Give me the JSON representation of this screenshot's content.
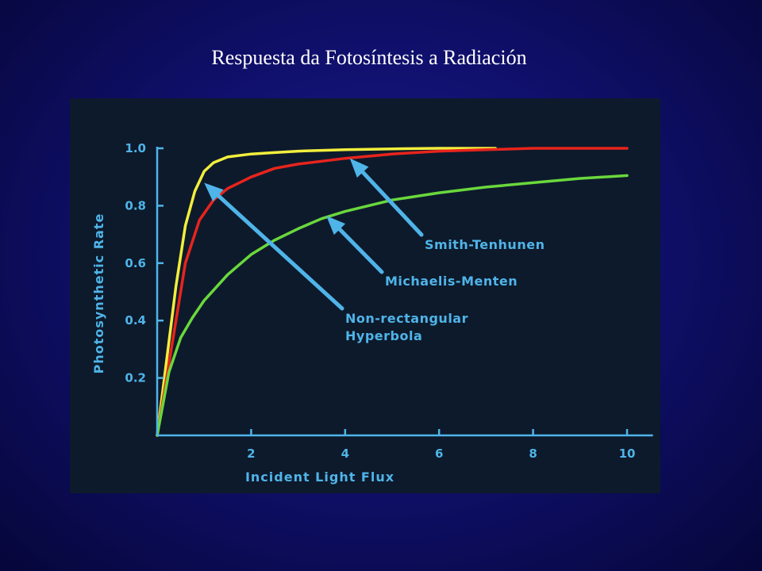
{
  "slide": {
    "title": "Respuesta  da Fotosíntesis a Radiación"
  },
  "colors": {
    "axis": "#4fb4e8",
    "arrow": "#4fb4e8",
    "panel": "#0d1a2c"
  },
  "chart_data": {
    "type": "line",
    "title": "",
    "xlabel": "Incident  Light  Flux",
    "ylabel": "Photosynthetic  Rate",
    "xlim": [
      0,
      10.5
    ],
    "ylim": [
      0,
      1.0
    ],
    "xticks": [
      2,
      4,
      6,
      8,
      10
    ],
    "yticks": [
      0.2,
      0.4,
      0.6,
      0.8,
      1.0
    ],
    "xtick_labels": [
      "2",
      "4",
      "6",
      "8",
      "10"
    ],
    "ytick_labels": [
      "0.2",
      "0.4",
      "0.6",
      "0.8",
      "1.0"
    ],
    "grid": false,
    "series": [
      {
        "color": "#f2ee3c",
        "x": [
          0,
          0.2,
          0.4,
          0.6,
          0.8,
          1.0,
          1.2,
          1.5,
          2.0,
          2.5,
          3.0,
          4.0,
          5.0,
          6.0,
          7.2
        ],
        "y": [
          0,
          0.26,
          0.52,
          0.73,
          0.85,
          0.92,
          0.95,
          0.97,
          0.98,
          0.985,
          0.99,
          0.995,
          0.998,
          1.0,
          1.0
        ]
      },
      {
        "color": "#e8241c",
        "x": [
          0,
          0.3,
          0.6,
          0.9,
          1.2,
          1.5,
          2.0,
          2.5,
          3.0,
          3.5,
          4.0,
          5.0,
          6.0,
          7.0,
          8.0,
          10.0
        ],
        "y": [
          0,
          0.3,
          0.6,
          0.75,
          0.82,
          0.86,
          0.9,
          0.93,
          0.945,
          0.955,
          0.965,
          0.98,
          0.99,
          0.995,
          1.0,
          1.0
        ]
      },
      {
        "color": "#6ad83c",
        "x": [
          0,
          0.25,
          0.5,
          0.75,
          1.0,
          1.5,
          2.0,
          2.5,
          3.0,
          3.5,
          4.0,
          5.0,
          6.0,
          7.0,
          8.0,
          9.0,
          10.0
        ],
        "y": [
          0,
          0.22,
          0.34,
          0.41,
          0.47,
          0.56,
          0.63,
          0.68,
          0.72,
          0.755,
          0.78,
          0.82,
          0.845,
          0.865,
          0.88,
          0.895,
          0.905
        ]
      }
    ],
    "annotations": [
      {
        "lines": [
          "Smith-Tenhunen"
        ],
        "target": [
          4.1,
          0.965
        ],
        "anchor": "left"
      },
      {
        "lines": [
          "Michaelis-Menten"
        ],
        "target": [
          3.6,
          0.765
        ],
        "anchor": "left"
      },
      {
        "lines": [
          "Non-rectangular",
          "Hyperbola"
        ],
        "target": [
          1.0,
          0.88
        ],
        "anchor": "left"
      }
    ]
  }
}
